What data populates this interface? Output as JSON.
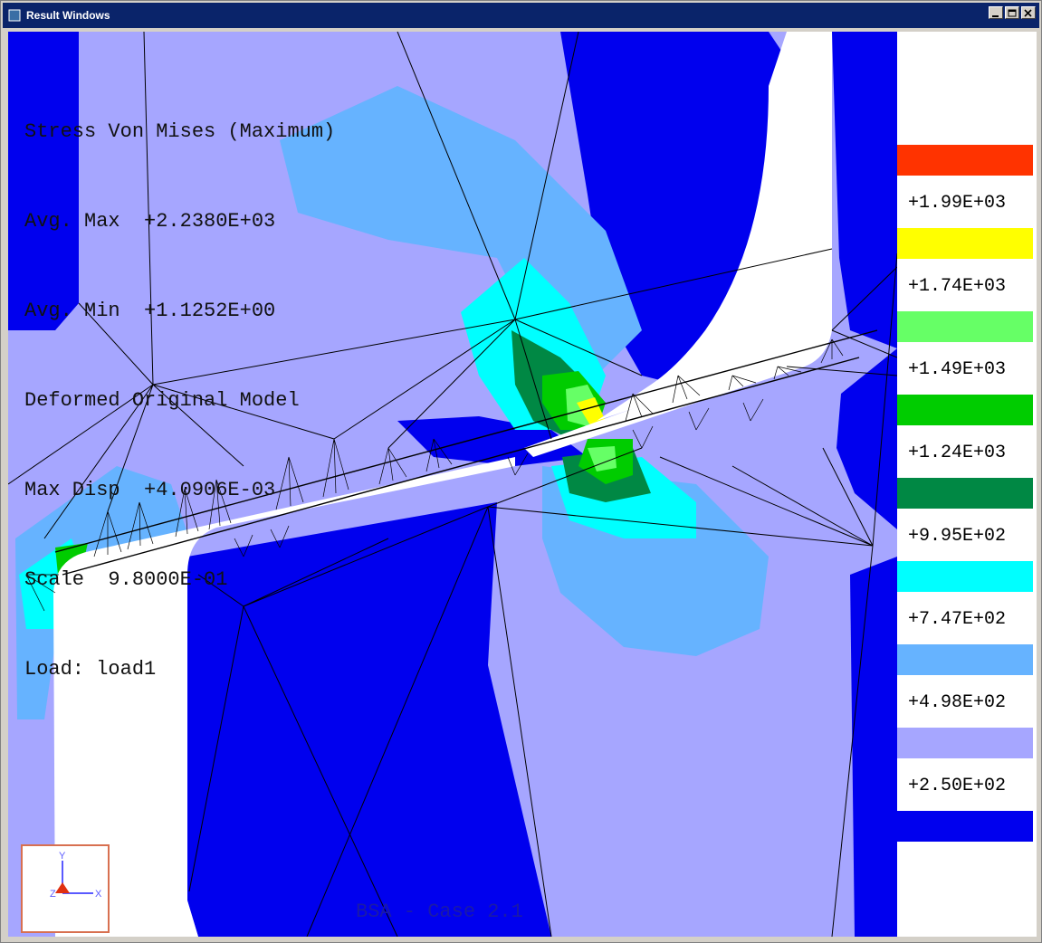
{
  "window": {
    "title": "Result Windows"
  },
  "info": {
    "lines": [
      "Stress Von Mises (Maximum)",
      "Avg. Max  +2.2380E+03",
      "Avg. Min  +1.1252E+00",
      "Deformed Original Model",
      "Max Disp  +4.0906E-03",
      "Scale  9.8000E-01",
      "Load: load1"
    ]
  },
  "legend": {
    "colors": [
      "#ff3300",
      "#ffff00",
      "#66ff66",
      "#00cc00",
      "#008844",
      "#00ffff",
      "#66b3ff",
      "#a6a6ff",
      "#0000ee"
    ],
    "labels": [
      "+1.99E+03",
      "+1.74E+03",
      "+1.49E+03",
      "+1.24E+03",
      "+9.95E+02",
      "+7.47E+02",
      "+4.98E+02",
      "+2.50E+02"
    ]
  },
  "case_label": "BSA - Case 2.1",
  "triad": {
    "y_label": "Y",
    "x_label": "X",
    "z_label": "Z"
  }
}
